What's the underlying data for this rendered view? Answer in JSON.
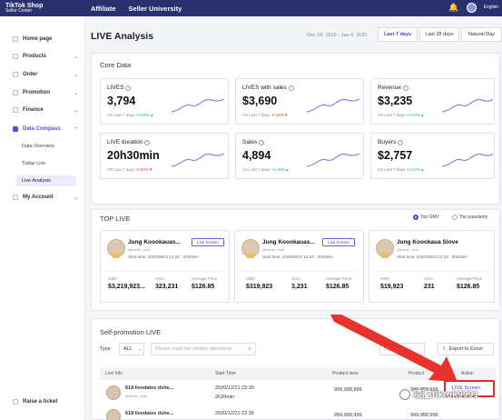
{
  "topnav": {
    "logo_line1": "TikTok Shop",
    "logo_line2": "Seller Center",
    "links": [
      "Affiliate",
      "Seller University"
    ],
    "lang": "English",
    "bell_icon": "bell-icon"
  },
  "sidebar": {
    "groups": [
      {
        "label": "Home page",
        "chev": ""
      },
      {
        "label": "Products",
        "chev": "⌄"
      },
      {
        "label": "Order",
        "chev": "⌄"
      },
      {
        "label": "Promotion",
        "chev": "⌄"
      },
      {
        "label": "Finance",
        "chev": "⌄"
      },
      {
        "label": "Data Compass",
        "chev": "⌃"
      },
      {
        "label": "My Account",
        "chev": "⌄"
      }
    ],
    "sub_items": [
      "Data Overview",
      "Today Live",
      "Live Analysis"
    ],
    "raise_ticket": "Raise a ticket"
  },
  "header": {
    "title": "LIVE Analysis",
    "date_range": "Dec 29, 2019 - Jan 4, 2020",
    "ranges": [
      "Last 7 days",
      "Last 28 days",
      "Natural Day"
    ]
  },
  "core": {
    "title": "Core Data",
    "cmp_prefix": "VS Last 7 days",
    "metrics": [
      {
        "label": "LIVES",
        "value": "3,794",
        "cmp": "+0.09%",
        "dir": "up"
      },
      {
        "label": "LIVES with sales",
        "value": "$3,690",
        "cmp": "-0.38%",
        "dir": "down"
      },
      {
        "label": "Revenue",
        "value": "$3,235",
        "cmp": "+0.02%",
        "dir": "up"
      },
      {
        "label": "LIVE duration",
        "value": "20h30min",
        "cmp": "-0.90%",
        "dir": "down"
      },
      {
        "label": "Sales",
        "value": "4,894",
        "cmp": "+0.16%",
        "dir": "up"
      },
      {
        "label": "Buyers",
        "value": "$2,757",
        "cmp": "+0.02%",
        "dir": "up"
      }
    ]
  },
  "toplive": {
    "title": "TOP LIVE",
    "sort_options": [
      "Top GMV",
      "Top popularity"
    ],
    "button": "Live Screen",
    "stat_labels": [
      "GMV",
      "ACU",
      "Average Price"
    ],
    "cards": [
      {
        "name": "Jung Koookauas...",
        "handle": "@tianlin_hosi",
        "start": "Start time: 2020/06/21 12:23",
        "dur": "2h20min",
        "gmv": "$3,219,923...",
        "acu": "323,231",
        "avg": "$126.85",
        "button": "Live Screen"
      },
      {
        "name": "Jung Koookauas...",
        "handle": "@tianlin_hosi",
        "start": "Start time: 2020/06/21 12:23",
        "dur": "2h20min",
        "gmv": "$319,923",
        "acu": "3,231",
        "avg": "$126.85",
        "button": "Live Screen"
      },
      {
        "name": "Jung Koookaua Slove",
        "handle": "@tianlin_hosi",
        "start": "Start time: 2020/06/21 12:23",
        "dur": "2h20min",
        "gmv": "$19,923",
        "acu": "231",
        "avg": "$126.85",
        "button": ""
      }
    ]
  },
  "selfpromo": {
    "title": "Self-promotion LIVE",
    "type_label": "Type",
    "type_value": "ALL",
    "search_placeholder": "Please input the creator username",
    "export_label": "Export to Excel",
    "columns": [
      "Live Info",
      "Start Time",
      "Product view",
      "Product",
      "Action"
    ],
    "rows": [
      {
        "name": "618 livedates dshe...",
        "handle": "@tianlin_hosi",
        "time": "2020/12/21 22:30",
        "dur": "2h20min",
        "views": "999,999,999",
        "products": "999,999,999",
        "action": "LIVE Screen"
      },
      {
        "name": "618 livedates dshe...",
        "handle": "",
        "time": "2020/12/21 22:30",
        "dur": "",
        "views": "999,999,999",
        "products": "999,999,999",
        "action": ""
      }
    ]
  },
  "watermark": "项脑tiktok9991",
  "colors": {
    "accent": "#4b40d2",
    "nav": "#2a2f6d",
    "annotation": "#e02a2a",
    "up": "#1fb87a",
    "down": "#e8453c"
  }
}
